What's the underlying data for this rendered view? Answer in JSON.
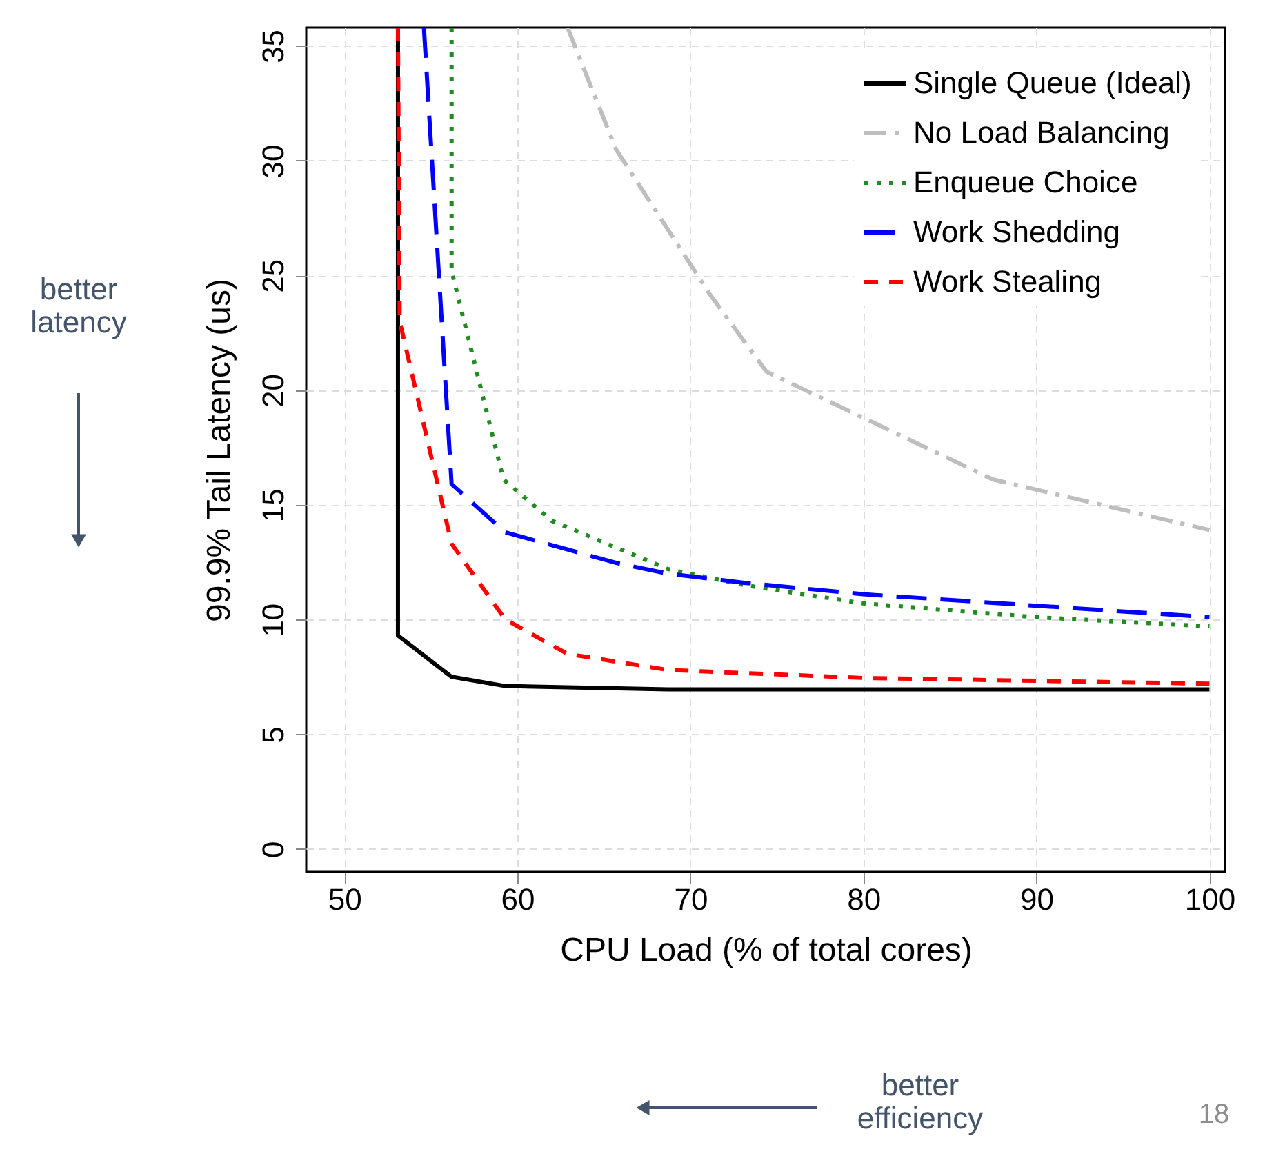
{
  "chart_data": {
    "type": "line",
    "xlabel": "CPU Load (% of total cores)",
    "ylabel": "99.9% Tail Latency (us)",
    "xlim": [
      47.8,
      100.9
    ],
    "ylim": [
      -1,
      35.8
    ],
    "xticks": [
      50,
      60,
      70,
      80,
      90,
      100
    ],
    "yticks": [
      0,
      5,
      10,
      15,
      20,
      25,
      30,
      35
    ],
    "grid": true,
    "legend": "top right",
    "marker": "none",
    "series": [
      {
        "name": "Single Queue (Ideal)",
        "color": "#000000",
        "line_style": "solid",
        "x": [
          53.1,
          53.1,
          56.2,
          59.3,
          68.7,
          100
        ],
        "values": [
          35.8,
          9.3,
          7.5,
          7.1,
          6.95,
          6.95
        ]
      },
      {
        "name": "No Load Balancing",
        "color": "#bebebe",
        "line_style": "dashed",
        "x": [
          62.9,
          65.7,
          71.1,
          74.4,
          87.5,
          100
        ],
        "values": [
          35.8,
          30.5,
          24.2,
          20.8,
          16.1,
          13.9
        ]
      },
      {
        "name": "Enqueue Choice",
        "color": "#228b22",
        "line_style": "dotted",
        "x": [
          56.2,
          56.2,
          59.2,
          62.0,
          68.7,
          73.1,
          80,
          90,
          100
        ],
        "values": [
          35.8,
          25.2,
          16.1,
          14.3,
          12.2,
          11.5,
          10.7,
          10.1,
          9.7
        ]
      },
      {
        "name": "Work Shedding",
        "color": "#0000ff",
        "line_style": "dashed",
        "x": [
          54.6,
          56.2,
          59.3,
          65.8,
          68.7,
          73.1,
          80,
          90,
          100
        ],
        "values": [
          35.8,
          15.9,
          13.8,
          12.45,
          12.0,
          11.6,
          11.1,
          10.6,
          10.1
        ]
      },
      {
        "name": "Work Stealing",
        "color": "#ff0000",
        "line_style": "dashed",
        "x": [
          53.1,
          53.2,
          56.2,
          59.3,
          62.9,
          68.7,
          80,
          100
        ],
        "values": [
          35.8,
          23.0,
          13.3,
          10.0,
          8.5,
          7.8,
          7.45,
          7.2
        ]
      }
    ],
    "annotations": [
      "better latency",
      "better efficiency",
      "18"
    ]
  }
}
